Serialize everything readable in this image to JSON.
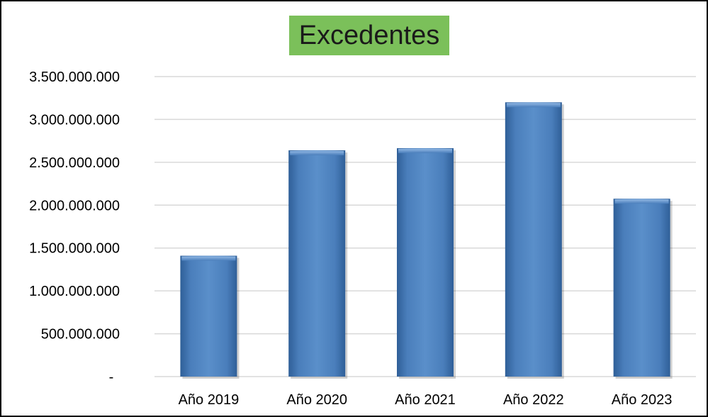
{
  "chart_data": {
    "type": "bar",
    "title": "Excedentes",
    "categories": [
      "Año 2019",
      "Año 2020",
      "Año 2021",
      "Año 2022",
      "Año 2023"
    ],
    "series": [
      {
        "values": [
          1410000000,
          2640000000,
          2665000000,
          3200000000,
          2075000000
        ]
      }
    ],
    "ylim": [
      0,
      3500000000
    ],
    "y_ticks": [
      {
        "value": 0,
        "label": "-"
      },
      {
        "value": 500000000,
        "label": "500.000.000"
      },
      {
        "value": 1000000000,
        "label": "1.000.000.000"
      },
      {
        "value": 1500000000,
        "label": "1.500.000.000"
      },
      {
        "value": 2000000000,
        "label": "2.000.000.000"
      },
      {
        "value": 2500000000,
        "label": "2.500.000.000"
      },
      {
        "value": 3000000000,
        "label": "3.000.000.000"
      },
      {
        "value": 3500000000,
        "label": "3.500.000.000"
      }
    ],
    "grid": true,
    "legend": "none",
    "colors": {
      "bar": "#4a7ebb",
      "bar_light": "#6c9bd2",
      "bar_dark": "#2f5f98",
      "title_background": "#7bc05a",
      "grid": "#d9d9d9"
    }
  }
}
